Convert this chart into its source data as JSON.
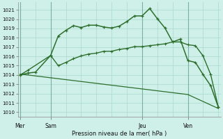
{
  "xlabel": "Pression niveau de la mer( hPa )",
  "bg_color": "#cef0e8",
  "grid_color": "#a8d8cc",
  "line_color": "#2d6e2d",
  "vline_color": "#7ab0a0",
  "ylim": [
    1009.5,
    1021.8
  ],
  "yticks": [
    1010,
    1011,
    1012,
    1013,
    1014,
    1015,
    1016,
    1017,
    1018,
    1019,
    1020,
    1021
  ],
  "xlim": [
    -0.3,
    26.3
  ],
  "day_positions": [
    0,
    4,
    16,
    22
  ],
  "day_labels": [
    "Mer",
    "Sam",
    "Jeu",
    "Ven"
  ],
  "line1_x": [
    0,
    1,
    2,
    4,
    5,
    6,
    7,
    8,
    9,
    10,
    11,
    12,
    13,
    14,
    15,
    16,
    17,
    18,
    19,
    20,
    21,
    22,
    23,
    24,
    25,
    26
  ],
  "line1_y": [
    1014.0,
    1014.2,
    1014.3,
    1016.1,
    1018.2,
    1018.8,
    1019.3,
    1019.1,
    1019.35,
    1019.35,
    1019.15,
    1019.05,
    1019.25,
    1019.75,
    1020.35,
    1020.35,
    1021.15,
    1020.05,
    1019.05,
    1017.55,
    1017.85,
    1015.55,
    1015.35,
    1014.05,
    1012.85,
    1010.55
  ],
  "line2_x": [
    0,
    1,
    4,
    5,
    6,
    7,
    8,
    9,
    10,
    11,
    12,
    13,
    14,
    15,
    16,
    17,
    18,
    19,
    20,
    21,
    22,
    23,
    24,
    25,
    26
  ],
  "line2_y": [
    1014.0,
    1014.5,
    1016.1,
    1015.0,
    1015.35,
    1015.75,
    1016.05,
    1016.25,
    1016.35,
    1016.55,
    1016.55,
    1016.75,
    1016.85,
    1017.05,
    1017.05,
    1017.15,
    1017.25,
    1017.35,
    1017.55,
    1017.55,
    1017.25,
    1017.15,
    1016.05,
    1014.05,
    1010.55
  ],
  "line3_x": [
    0,
    4,
    8,
    12,
    16,
    20,
    22,
    26
  ],
  "line3_y": [
    1014.1,
    1013.7,
    1013.3,
    1012.9,
    1012.5,
    1012.1,
    1011.9,
    1010.4
  ]
}
